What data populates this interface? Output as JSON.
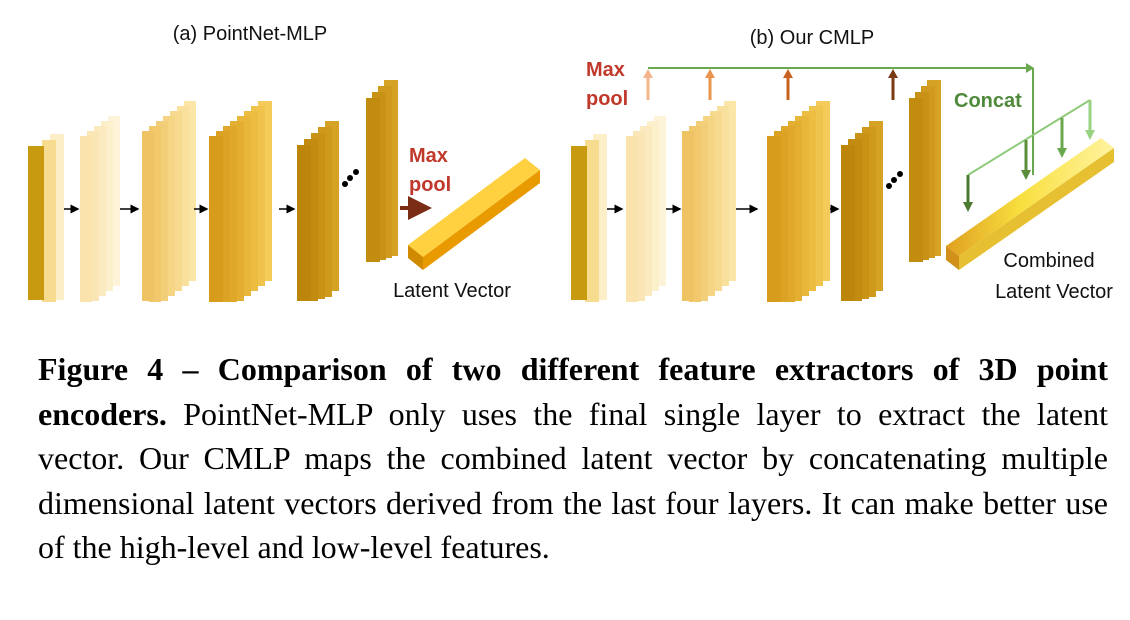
{
  "panel_a": {
    "title": "(a) PointNet-MLP",
    "maxpool_line1": "Max",
    "maxpool_line2": "pool",
    "latent_label": "Latent Vector"
  },
  "panel_b": {
    "title": "(b) Our CMLP",
    "maxpool_line1": "Max",
    "maxpool_line2": "pool",
    "concat_label": "Concat",
    "latent_label_line1": "Combined",
    "latent_label_line2": "Latent Vector"
  },
  "colors": {
    "dark_gold": "#c89a10",
    "light_cream": "#fbebc0",
    "mid_gold": "#e8b838",
    "maxpool_red": "#c0392b",
    "concat_green": "#4f8a3a",
    "arrow_green_light": "#7fbf60",
    "latent_orange": "#f0a800"
  },
  "caption": {
    "bold": "Figure 4 – Comparison of two different feature extractors of 3D point encoders.",
    "text": " PointNet-MLP only uses the final single layer to extract the latent vector. Our CMLP maps the combined latent vector by concatenating multiple dimensional latent vectors derived from the last four layers. It can make better use of the high-level and low-level features."
  }
}
